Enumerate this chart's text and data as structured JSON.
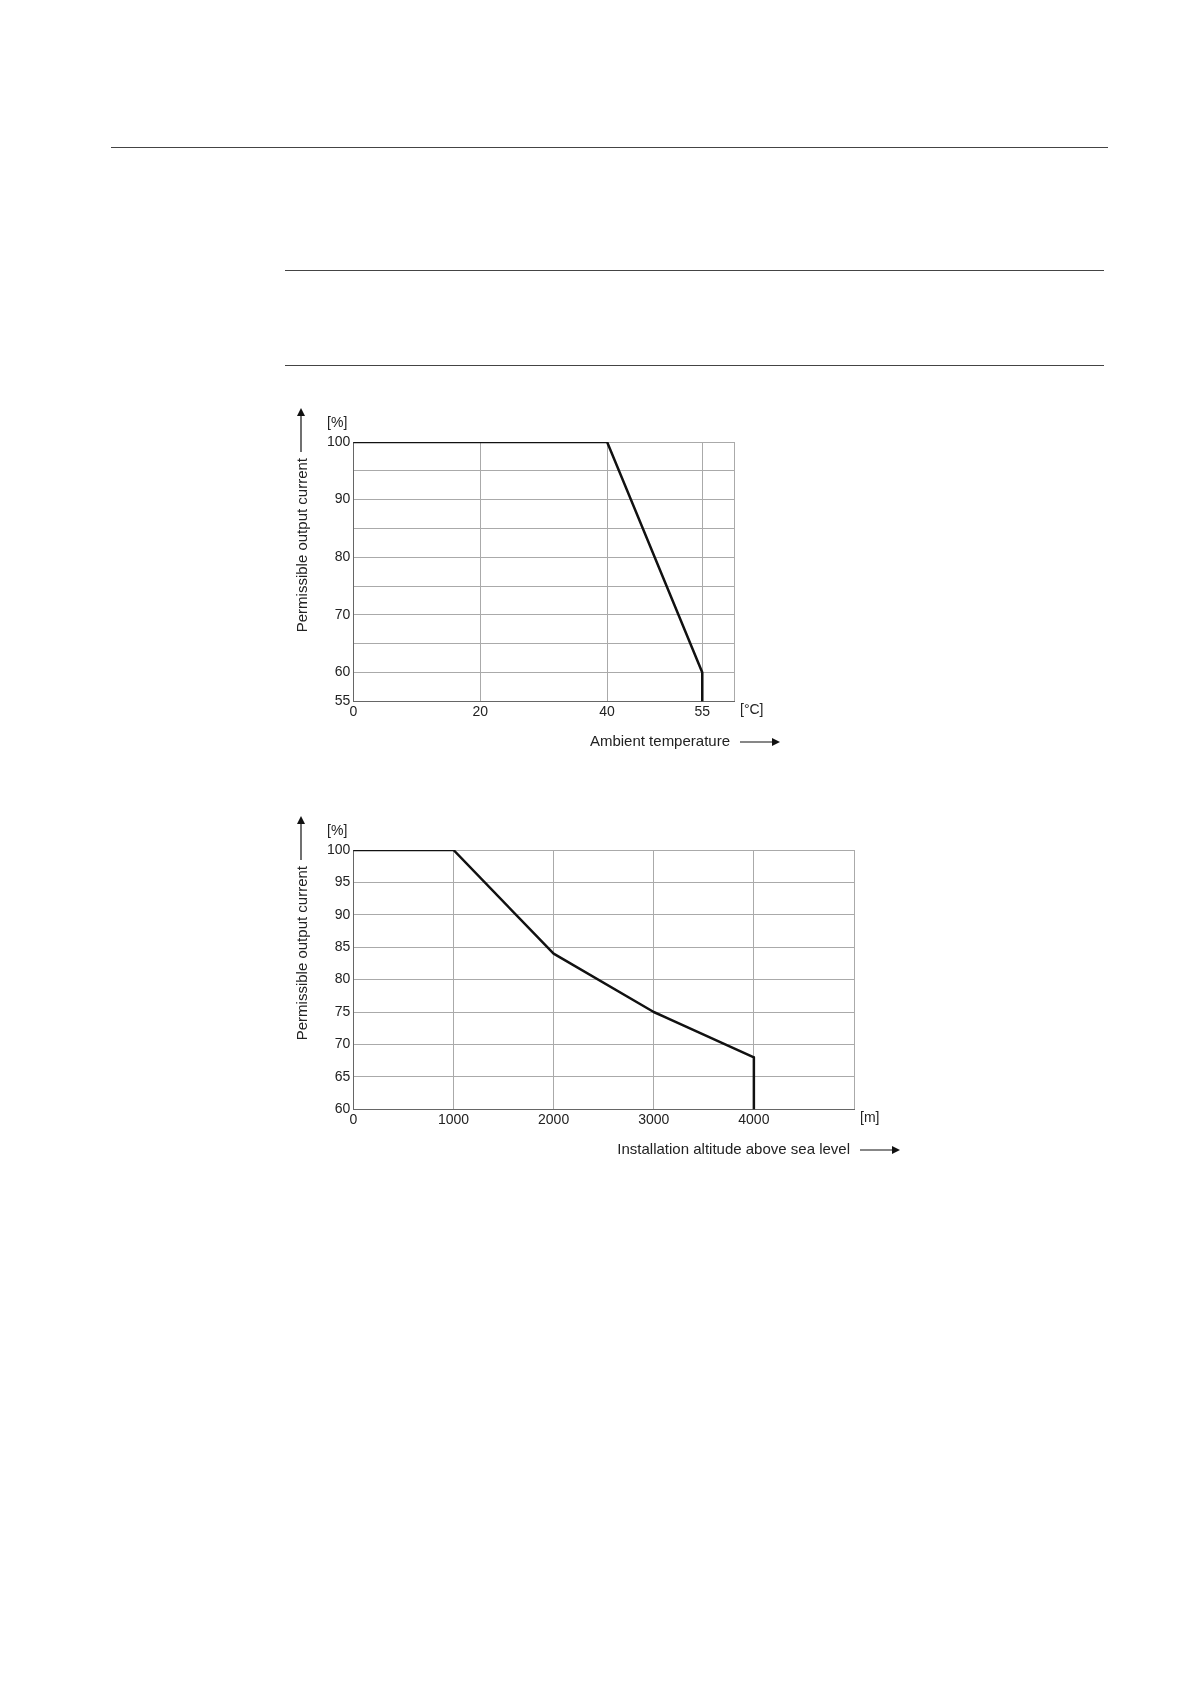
{
  "chart_data": [
    {
      "type": "line",
      "xlabel": "Ambient temperature",
      "ylabel": "Permissible output current",
      "annotations": [
        "[%]",
        "[°C]"
      ],
      "x": [
        0,
        40,
        55,
        55
      ],
      "series": [
        {
          "color": "#111111",
          "values": [
            100,
            100,
            60,
            55
          ]
        }
      ],
      "xlim": [
        0,
        60
      ],
      "xticks": [
        0,
        20,
        40,
        55,
        {
          "value": 60,
          "label": null
        }
      ],
      "ylim": [
        55,
        100
      ],
      "yticks": [
        55,
        60,
        {
          "value": 65,
          "label": null
        },
        70,
        {
          "value": 75,
          "label": null
        },
        80,
        {
          "value": 85,
          "label": null
        },
        90,
        {
          "value": 95,
          "label": null
        },
        100
      ],
      "grid": true,
      "marker": "none",
      "line_style": "solid"
    },
    {
      "type": "line",
      "xlabel": "Installation altitude above sea level",
      "ylabel": "Permissible output current",
      "annotations": [
        "[%]",
        "[m]"
      ],
      "x": [
        0,
        1000,
        2000,
        3000,
        4000,
        4000
      ],
      "series": [
        {
          "color": "#111111",
          "values": [
            100,
            100,
            84,
            75,
            68,
            60
          ]
        }
      ],
      "xlim": [
        0,
        5000
      ],
      "xticks": [
        0,
        1000,
        2000,
        3000,
        4000,
        {
          "value": 5000,
          "label": null
        }
      ],
      "ylim": [
        60,
        100
      ],
      "yticks": [
        60,
        65,
        70,
        75,
        80,
        85,
        90,
        95,
        100
      ],
      "grid": true,
      "marker": "none",
      "line_style": "solid"
    }
  ]
}
